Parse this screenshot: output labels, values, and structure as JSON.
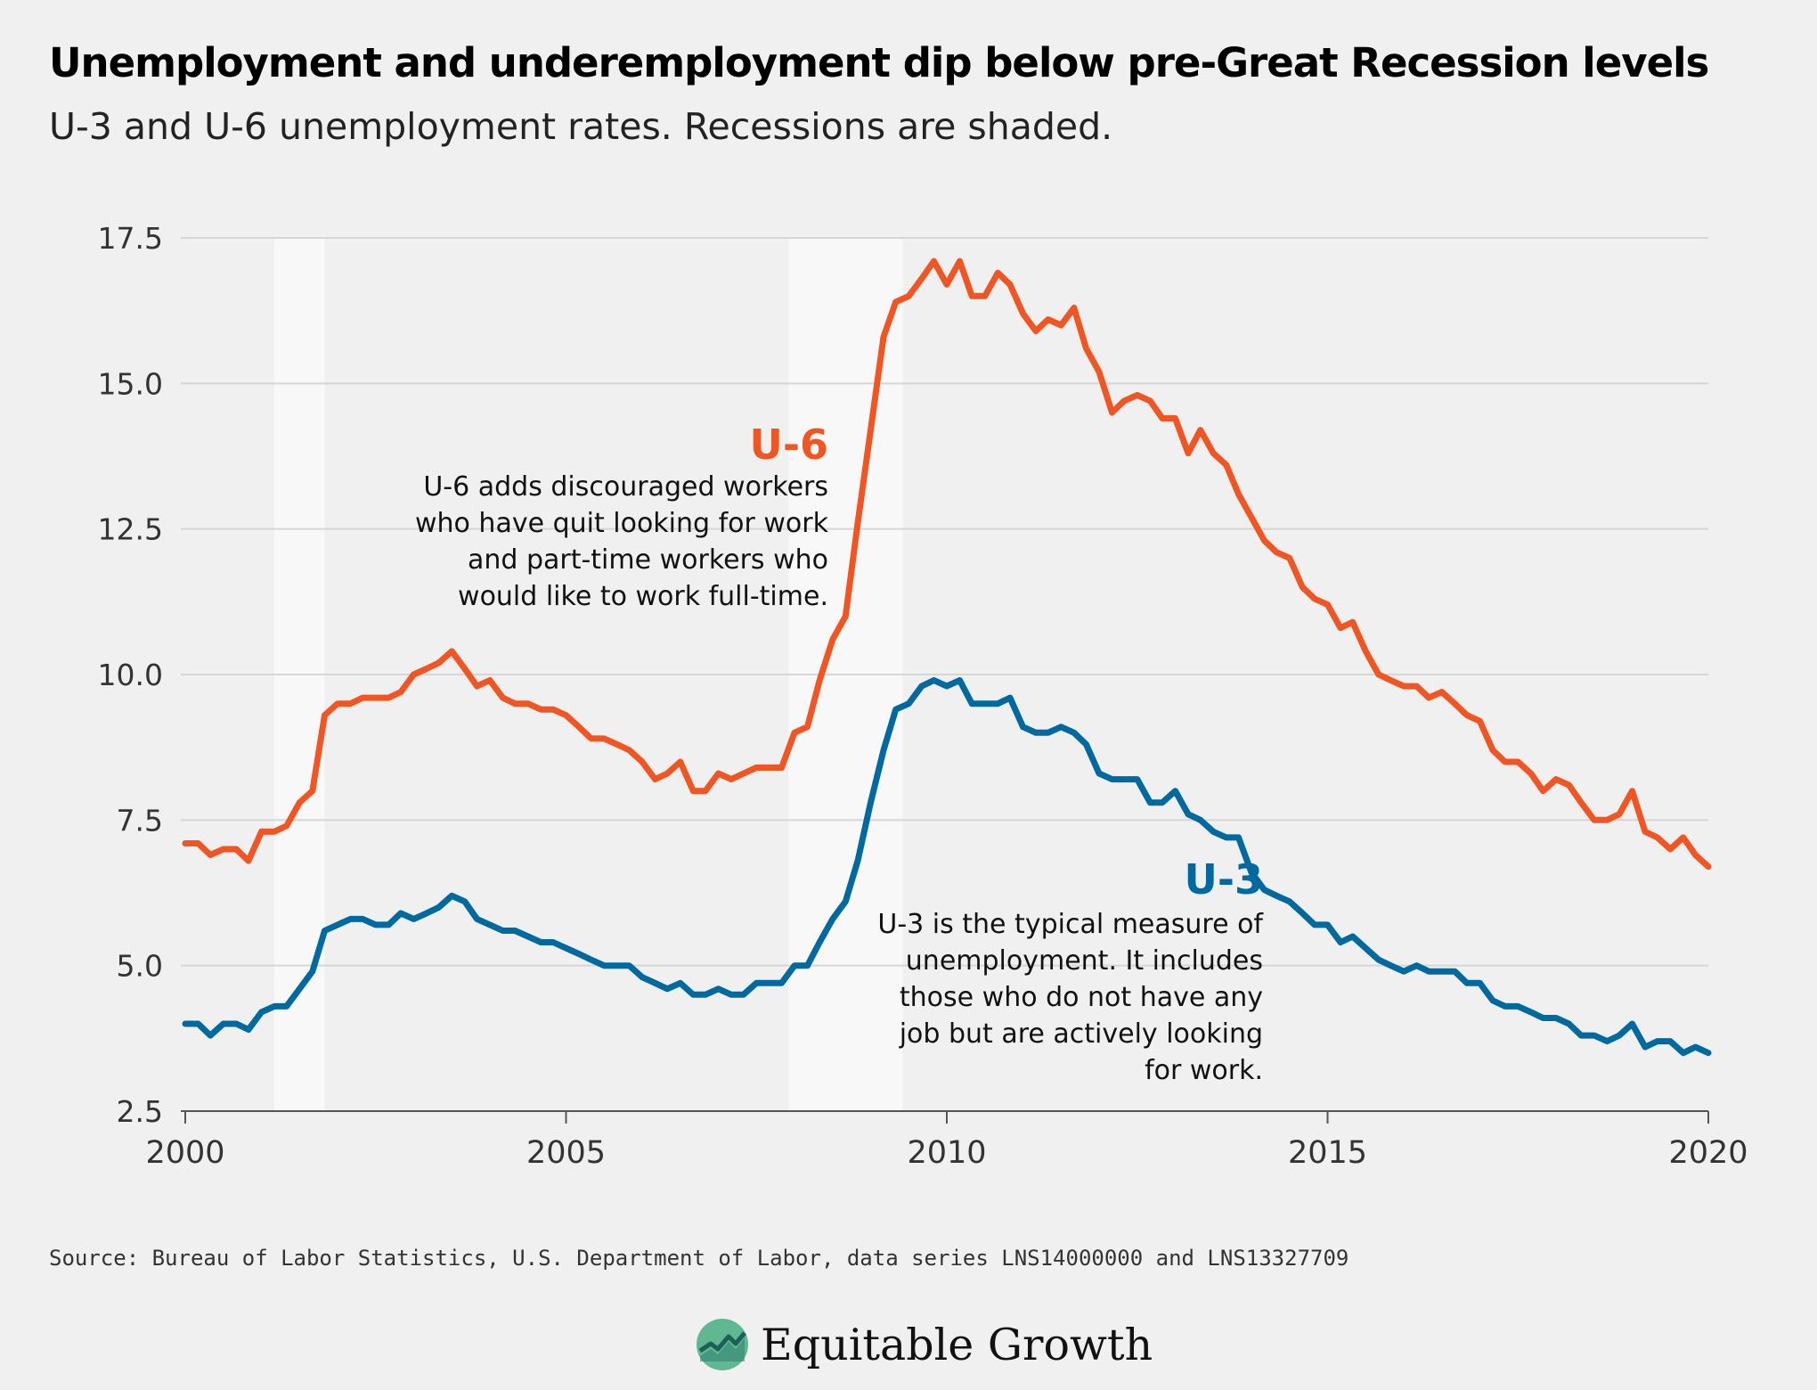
{
  "title": "Unemployment and underemployment dip below pre-Great Recession levels",
  "subtitle": "U-3 and U-6 unemployment rates. Recessions are shaded.",
  "source": "Source: Bureau of Labor Statistics, U.S. Department of Labor, data series LNS14000000 and LNS13327709",
  "logo": {
    "text": "Equitable Growth",
    "icon": "growth-chart-icon"
  },
  "colors": {
    "u6": "#f05524",
    "u3": "#00699f",
    "recession": "#f8f8f8",
    "grid": "#d6d6d6",
    "background": "#f0f0f0"
  },
  "chart_data": {
    "type": "line",
    "title": "",
    "xlabel": "",
    "ylabel": "",
    "xlim": [
      2000,
      2020
    ],
    "ylim": [
      2.5,
      17.5
    ],
    "x_ticks": [
      2000,
      2005,
      2010,
      2015,
      2020
    ],
    "x_tick_labels": [
      "2000",
      "2005",
      "2010",
      "2015",
      "2020"
    ],
    "y_ticks": [
      2.5,
      5.0,
      7.5,
      10.0,
      12.5,
      15.0,
      17.5
    ],
    "y_tick_labels": [
      "2.5",
      "5.0",
      "7.5",
      "10.0",
      "12.5",
      "15.0",
      "17.5"
    ],
    "grid": "horizontal",
    "recessions": [
      {
        "start": 2001.17,
        "end": 2001.83
      },
      {
        "start": 2007.92,
        "end": 2009.42
      }
    ],
    "series": [
      {
        "name": "U-6",
        "description": "U-6 adds discouraged workers who have quit looking for work and part-time workers who would like to work full-time.",
        "color": "#f05524",
        "points": [
          [
            2000.0,
            7.1
          ],
          [
            2000.17,
            7.1
          ],
          [
            2000.33,
            6.9
          ],
          [
            2000.5,
            7.0
          ],
          [
            2000.67,
            7.0
          ],
          [
            2000.83,
            6.8
          ],
          [
            2001.0,
            7.3
          ],
          [
            2001.17,
            7.3
          ],
          [
            2001.33,
            7.4
          ],
          [
            2001.5,
            7.8
          ],
          [
            2001.67,
            8.0
          ],
          [
            2001.83,
            9.3
          ],
          [
            2002.0,
            9.5
          ],
          [
            2002.17,
            9.5
          ],
          [
            2002.33,
            9.6
          ],
          [
            2002.5,
            9.6
          ],
          [
            2002.67,
            9.6
          ],
          [
            2002.83,
            9.7
          ],
          [
            2003.0,
            10.0
          ],
          [
            2003.17,
            10.1
          ],
          [
            2003.33,
            10.2
          ],
          [
            2003.5,
            10.4
          ],
          [
            2003.67,
            10.1
          ],
          [
            2003.83,
            9.8
          ],
          [
            2004.0,
            9.9
          ],
          [
            2004.17,
            9.6
          ],
          [
            2004.33,
            9.5
          ],
          [
            2004.5,
            9.5
          ],
          [
            2004.67,
            9.4
          ],
          [
            2004.83,
            9.4
          ],
          [
            2005.0,
            9.3
          ],
          [
            2005.17,
            9.1
          ],
          [
            2005.33,
            8.9
          ],
          [
            2005.5,
            8.9
          ],
          [
            2005.67,
            8.8
          ],
          [
            2005.83,
            8.7
          ],
          [
            2006.0,
            8.5
          ],
          [
            2006.17,
            8.2
          ],
          [
            2006.33,
            8.3
          ],
          [
            2006.5,
            8.5
          ],
          [
            2006.67,
            8.0
          ],
          [
            2006.83,
            8.0
          ],
          [
            2007.0,
            8.3
          ],
          [
            2007.17,
            8.2
          ],
          [
            2007.33,
            8.3
          ],
          [
            2007.5,
            8.4
          ],
          [
            2007.67,
            8.4
          ],
          [
            2007.83,
            8.4
          ],
          [
            2008.0,
            9.0
          ],
          [
            2008.17,
            9.1
          ],
          [
            2008.33,
            9.9
          ],
          [
            2008.5,
            10.6
          ],
          [
            2008.67,
            11.0
          ],
          [
            2008.83,
            12.6
          ],
          [
            2009.0,
            14.2
          ],
          [
            2009.17,
            15.8
          ],
          [
            2009.33,
            16.4
          ],
          [
            2009.5,
            16.5
          ],
          [
            2009.67,
            16.8
          ],
          [
            2009.83,
            17.1
          ],
          [
            2010.0,
            16.7
          ],
          [
            2010.17,
            17.1
          ],
          [
            2010.33,
            16.5
          ],
          [
            2010.5,
            16.5
          ],
          [
            2010.67,
            16.9
          ],
          [
            2010.83,
            16.7
          ],
          [
            2011.0,
            16.2
          ],
          [
            2011.17,
            15.9
          ],
          [
            2011.33,
            16.1
          ],
          [
            2011.5,
            16.0
          ],
          [
            2011.67,
            16.3
          ],
          [
            2011.83,
            15.6
          ],
          [
            2012.0,
            15.2
          ],
          [
            2012.17,
            14.5
          ],
          [
            2012.33,
            14.7
          ],
          [
            2012.5,
            14.8
          ],
          [
            2012.67,
            14.7
          ],
          [
            2012.83,
            14.4
          ],
          [
            2013.0,
            14.4
          ],
          [
            2013.17,
            13.8
          ],
          [
            2013.33,
            14.2
          ],
          [
            2013.5,
            13.8
          ],
          [
            2013.67,
            13.6
          ],
          [
            2013.83,
            13.1
          ],
          [
            2014.0,
            12.7
          ],
          [
            2014.17,
            12.3
          ],
          [
            2014.33,
            12.1
          ],
          [
            2014.5,
            12.0
          ],
          [
            2014.67,
            11.5
          ],
          [
            2014.83,
            11.3
          ],
          [
            2015.0,
            11.2
          ],
          [
            2015.17,
            10.8
          ],
          [
            2015.33,
            10.9
          ],
          [
            2015.5,
            10.4
          ],
          [
            2015.67,
            10.0
          ],
          [
            2015.83,
            9.9
          ],
          [
            2016.0,
            9.8
          ],
          [
            2016.17,
            9.8
          ],
          [
            2016.33,
            9.6
          ],
          [
            2016.5,
            9.7
          ],
          [
            2016.67,
            9.5
          ],
          [
            2016.83,
            9.3
          ],
          [
            2017.0,
            9.2
          ],
          [
            2017.17,
            8.7
          ],
          [
            2017.33,
            8.5
          ],
          [
            2017.5,
            8.5
          ],
          [
            2017.67,
            8.3
          ],
          [
            2017.83,
            8.0
          ],
          [
            2018.0,
            8.2
          ],
          [
            2018.17,
            8.1
          ],
          [
            2018.33,
            7.8
          ],
          [
            2018.5,
            7.5
          ],
          [
            2018.67,
            7.5
          ],
          [
            2018.83,
            7.6
          ],
          [
            2019.0,
            8.0
          ],
          [
            2019.17,
            7.3
          ],
          [
            2019.33,
            7.2
          ],
          [
            2019.5,
            7.0
          ],
          [
            2019.67,
            7.2
          ],
          [
            2019.83,
            6.9
          ],
          [
            2020.0,
            6.7
          ]
        ]
      },
      {
        "name": "U-3",
        "description": "U-3 is the typical measure of unemployment. It includes those who do not have any job but are actively looking for work.",
        "color": "#00699f",
        "points": [
          [
            2000.0,
            4.0
          ],
          [
            2000.17,
            4.0
          ],
          [
            2000.33,
            3.8
          ],
          [
            2000.5,
            4.0
          ],
          [
            2000.67,
            4.0
          ],
          [
            2000.83,
            3.9
          ],
          [
            2001.0,
            4.2
          ],
          [
            2001.17,
            4.3
          ],
          [
            2001.33,
            4.3
          ],
          [
            2001.5,
            4.6
          ],
          [
            2001.67,
            4.9
          ],
          [
            2001.83,
            5.6
          ],
          [
            2002.0,
            5.7
          ],
          [
            2002.17,
            5.8
          ],
          [
            2002.33,
            5.8
          ],
          [
            2002.5,
            5.7
          ],
          [
            2002.67,
            5.7
          ],
          [
            2002.83,
            5.9
          ],
          [
            2003.0,
            5.8
          ],
          [
            2003.17,
            5.9
          ],
          [
            2003.33,
            6.0
          ],
          [
            2003.5,
            6.2
          ],
          [
            2003.67,
            6.1
          ],
          [
            2003.83,
            5.8
          ],
          [
            2004.0,
            5.7
          ],
          [
            2004.17,
            5.6
          ],
          [
            2004.33,
            5.6
          ],
          [
            2004.5,
            5.5
          ],
          [
            2004.67,
            5.4
          ],
          [
            2004.83,
            5.4
          ],
          [
            2005.0,
            5.3
          ],
          [
            2005.17,
            5.2
          ],
          [
            2005.33,
            5.1
          ],
          [
            2005.5,
            5.0
          ],
          [
            2005.67,
            5.0
          ],
          [
            2005.83,
            5.0
          ],
          [
            2006.0,
            4.8
          ],
          [
            2006.17,
            4.7
          ],
          [
            2006.33,
            4.6
          ],
          [
            2006.5,
            4.7
          ],
          [
            2006.67,
            4.5
          ],
          [
            2006.83,
            4.5
          ],
          [
            2007.0,
            4.6
          ],
          [
            2007.17,
            4.5
          ],
          [
            2007.33,
            4.5
          ],
          [
            2007.5,
            4.7
          ],
          [
            2007.67,
            4.7
          ],
          [
            2007.83,
            4.7
          ],
          [
            2008.0,
            5.0
          ],
          [
            2008.17,
            5.0
          ],
          [
            2008.33,
            5.4
          ],
          [
            2008.5,
            5.8
          ],
          [
            2008.67,
            6.1
          ],
          [
            2008.83,
            6.8
          ],
          [
            2009.0,
            7.8
          ],
          [
            2009.17,
            8.7
          ],
          [
            2009.33,
            9.4
          ],
          [
            2009.5,
            9.5
          ],
          [
            2009.67,
            9.8
          ],
          [
            2009.83,
            9.9
          ],
          [
            2010.0,
            9.8
          ],
          [
            2010.17,
            9.9
          ],
          [
            2010.33,
            9.5
          ],
          [
            2010.5,
            9.5
          ],
          [
            2010.67,
            9.5
          ],
          [
            2010.83,
            9.6
          ],
          [
            2011.0,
            9.1
          ],
          [
            2011.17,
            9.0
          ],
          [
            2011.33,
            9.0
          ],
          [
            2011.5,
            9.1
          ],
          [
            2011.67,
            9.0
          ],
          [
            2011.83,
            8.8
          ],
          [
            2012.0,
            8.3
          ],
          [
            2012.17,
            8.2
          ],
          [
            2012.33,
            8.2
          ],
          [
            2012.5,
            8.2
          ],
          [
            2012.67,
            7.8
          ],
          [
            2012.83,
            7.8
          ],
          [
            2013.0,
            8.0
          ],
          [
            2013.17,
            7.6
          ],
          [
            2013.33,
            7.5
          ],
          [
            2013.5,
            7.3
          ],
          [
            2013.67,
            7.2
          ],
          [
            2013.83,
            7.2
          ],
          [
            2014.0,
            6.6
          ],
          [
            2014.17,
            6.3
          ],
          [
            2014.33,
            6.2
          ],
          [
            2014.5,
            6.1
          ],
          [
            2014.67,
            5.9
          ],
          [
            2014.83,
            5.7
          ],
          [
            2015.0,
            5.7
          ],
          [
            2015.17,
            5.4
          ],
          [
            2015.33,
            5.5
          ],
          [
            2015.5,
            5.3
          ],
          [
            2015.67,
            5.1
          ],
          [
            2015.83,
            5.0
          ],
          [
            2016.0,
            4.9
          ],
          [
            2016.17,
            5.0
          ],
          [
            2016.33,
            4.9
          ],
          [
            2016.5,
            4.9
          ],
          [
            2016.67,
            4.9
          ],
          [
            2016.83,
            4.7
          ],
          [
            2017.0,
            4.7
          ],
          [
            2017.17,
            4.4
          ],
          [
            2017.33,
            4.3
          ],
          [
            2017.5,
            4.3
          ],
          [
            2017.67,
            4.2
          ],
          [
            2017.83,
            4.1
          ],
          [
            2018.0,
            4.1
          ],
          [
            2018.17,
            4.0
          ],
          [
            2018.33,
            3.8
          ],
          [
            2018.5,
            3.8
          ],
          [
            2018.67,
            3.7
          ],
          [
            2018.83,
            3.8
          ],
          [
            2019.0,
            4.0
          ],
          [
            2019.17,
            3.6
          ],
          [
            2019.33,
            3.7
          ],
          [
            2019.5,
            3.7
          ],
          [
            2019.67,
            3.5
          ],
          [
            2019.83,
            3.6
          ],
          [
            2020.0,
            3.5
          ]
        ]
      }
    ],
    "annotations": [
      {
        "series": "U-6",
        "label": "U-6",
        "text_lines": [
          "U-6 adds discouraged workers",
          "who have quit looking for work",
          "and part-time workers who",
          "would like to work full-time."
        ]
      },
      {
        "series": "U-3",
        "label": "U-3",
        "text_lines": [
          "U-3 is the typical measure of",
          "unemployment. It includes",
          "those who do not have any",
          "job but are actively looking",
          "for work."
        ]
      }
    ]
  }
}
